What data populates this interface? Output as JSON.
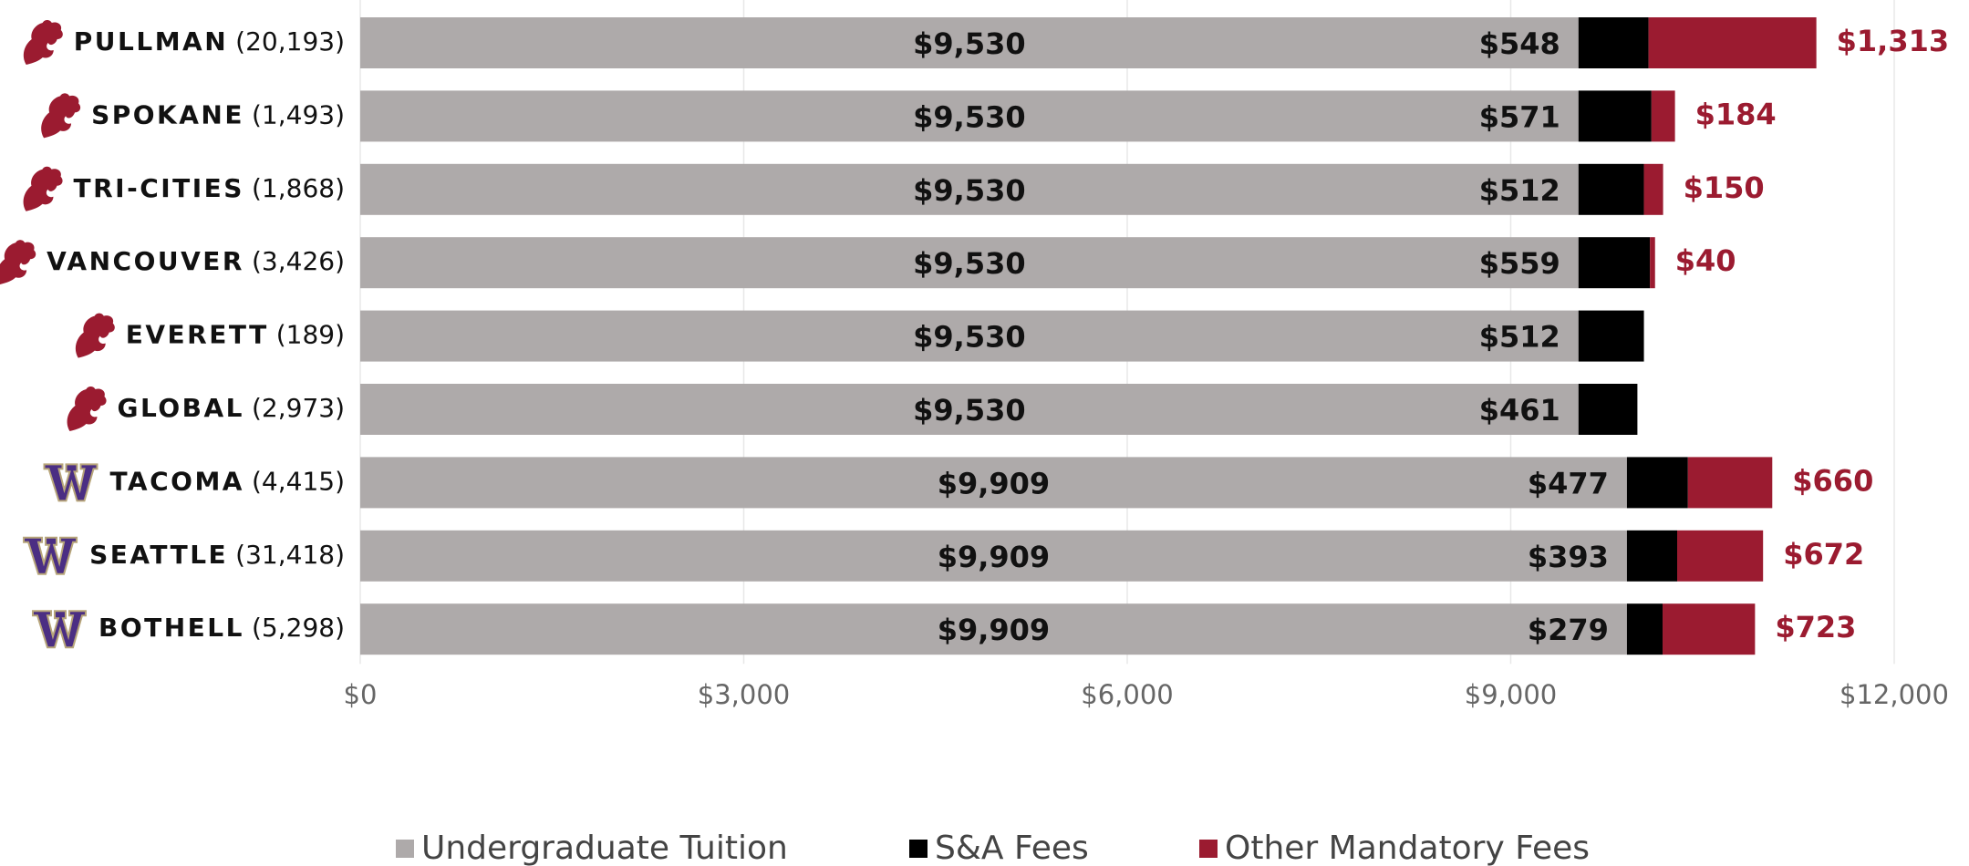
{
  "chart_data": {
    "type": "stacked_barh",
    "categories": [
      "PULLMAN",
      "SPOKANE",
      "TRI-CITIES",
      "VANCOUVER",
      "EVERETT",
      "GLOBAL",
      "TACOMA",
      "SEATTLE",
      "BOTHELL"
    ],
    "enrollment_labels": [
      "(20,193)",
      "(1,493)",
      "(1,868)",
      "(3,426)",
      "(189)",
      "(2,973)",
      "(4,415)",
      "(31,418)",
      "(5,298)"
    ],
    "series": [
      {
        "name": "Undergraduate Tuition",
        "color": "#aeaaaa",
        "values": [
          9530,
          9530,
          9530,
          9530,
          9530,
          9530,
          9909,
          9909,
          9909
        ],
        "value_labels": [
          "$9,530",
          "$9,530",
          "$9,530",
          "$9,530",
          "$9,530",
          "$9,530",
          "$9,909",
          "$9,909",
          "$9,909"
        ]
      },
      {
        "name": "S&A Fees",
        "color": "#000000",
        "values": [
          548,
          571,
          512,
          559,
          512,
          461,
          477,
          393,
          279
        ],
        "value_labels": [
          "$548",
          "$571",
          "$512",
          "$559",
          "$512",
          "$461",
          "$477",
          "$393",
          "$279"
        ]
      },
      {
        "name": "Other Mandatory Fees",
        "color": "#9b1b30",
        "values": [
          1313,
          184,
          150,
          40,
          null,
          null,
          660,
          672,
          723
        ],
        "value_labels": [
          "$1,313",
          "$184",
          "$150",
          "$40",
          null,
          null,
          "$660",
          "$672",
          "$723"
        ]
      }
    ],
    "xlim": [
      0,
      12000
    ],
    "xticks": [
      {
        "value": 0,
        "label": "$0"
      },
      {
        "value": 3000,
        "label": "$3,000"
      },
      {
        "value": 6000,
        "label": "$6,000"
      },
      {
        "value": 9000,
        "label": "$9,000"
      },
      {
        "value": 12000,
        "label": "$12,000"
      }
    ],
    "grid": true
  }
}
